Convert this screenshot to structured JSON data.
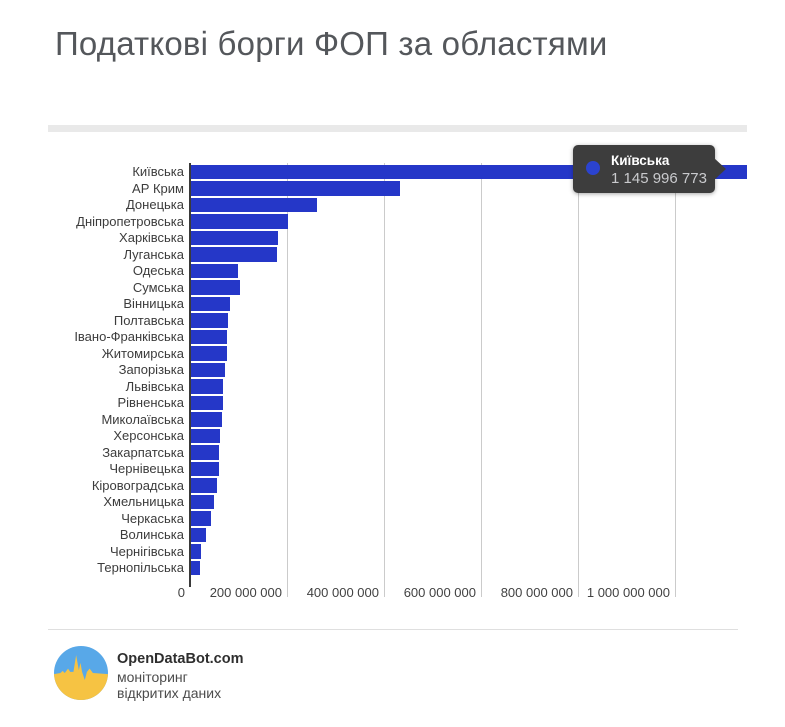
{
  "title": {
    "text": "Податкові борги ФОП за областями"
  },
  "chart_data": {
    "type": "bar",
    "orientation": "horizontal",
    "title": "Податкові борги ФОП за областями",
    "xlabel": "",
    "ylabel": "",
    "xlim": [
      0,
      1200000000
    ],
    "grid": true,
    "bar_color": "#2537c8",
    "gridline_color": "#cbcbcb",
    "regions": [
      {
        "name": "Київська",
        "value": 1145996773
      },
      {
        "name": "АР Крим",
        "value": 430000000
      },
      {
        "name": "Донецька",
        "value": 259000000
      },
      {
        "name": "Дніпропетровська",
        "value": 200000000
      },
      {
        "name": "Харківська",
        "value": 180000000
      },
      {
        "name": "Луганська",
        "value": 178000000
      },
      {
        "name": "Одеська",
        "value": 97000000
      },
      {
        "name": "Сумська",
        "value": 101000000
      },
      {
        "name": "Вінницька",
        "value": 81000000
      },
      {
        "name": "Полтавська",
        "value": 76000000
      },
      {
        "name": "Івано-Франківська",
        "value": 74000000
      },
      {
        "name": "Житомирська",
        "value": 74000000
      },
      {
        "name": "Запорізька",
        "value": 71000000
      },
      {
        "name": "Львівська",
        "value": 66000000
      },
      {
        "name": "Рівненська",
        "value": 66000000
      },
      {
        "name": "Миколаївська",
        "value": 64000000
      },
      {
        "name": "Херсонська",
        "value": 59000000
      },
      {
        "name": "Закарпатська",
        "value": 57000000
      },
      {
        "name": "Чернівецька",
        "value": 57000000
      },
      {
        "name": "Кіровоградська",
        "value": 53000000
      },
      {
        "name": "Хмельницька",
        "value": 48000000
      },
      {
        "name": "Черкаська",
        "value": 42000000
      },
      {
        "name": "Волинська",
        "value": 30000000
      },
      {
        "name": "Чернігівська",
        "value": 21000000
      },
      {
        "name": "Тернопільська",
        "value": 19000000
      }
    ],
    "x_ticks": [
      {
        "label": "0",
        "value": 0
      },
      {
        "label": "200 000 000",
        "value": 200000000
      },
      {
        "label": "400 000 000",
        "value": 400000000
      },
      {
        "label": "600 000 000",
        "value": 600000000
      },
      {
        "label": "800 000 000",
        "value": 800000000
      },
      {
        "label": "1 000 000 000",
        "value": 1000000000
      }
    ]
  },
  "tooltip": {
    "region": "Київська",
    "value_label": "1 145 996 773",
    "bg_color": "#3d3d3d",
    "dot_color": "#2b43cf"
  },
  "footer": {
    "brand": "OpenDataBot.com",
    "line1": "моніторинг",
    "line2": "відкритих даних"
  },
  "colors": {
    "title_text": "#54575b",
    "divider": "#e9e9e9",
    "axis_line": "#3a3a3a",
    "label_text": "#3c3c3c"
  }
}
